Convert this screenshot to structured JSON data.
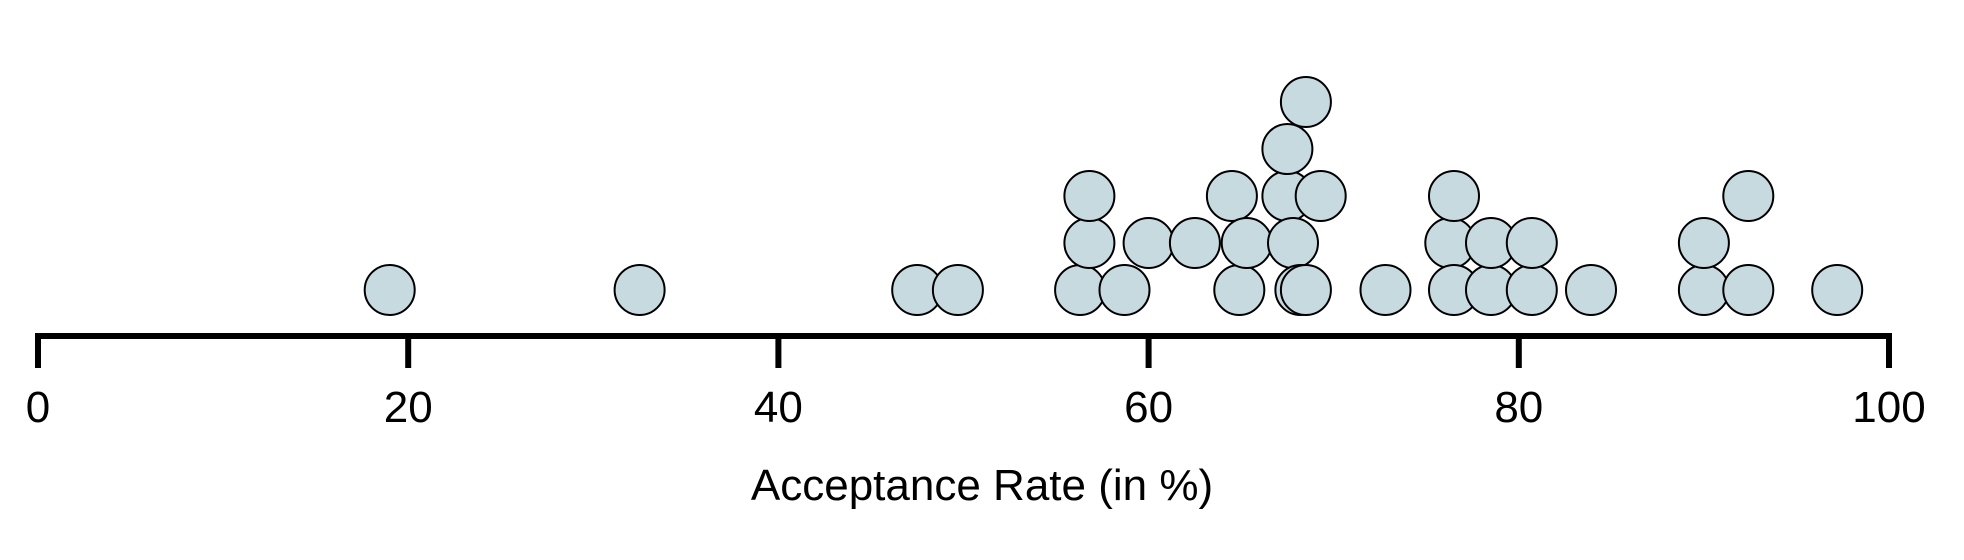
{
  "chart_data": {
    "type": "scatter",
    "subtype": "dot plot",
    "title": "",
    "xlabel": "Acceptance Rate (in %)",
    "ylabel": "",
    "xlim": [
      0,
      100
    ],
    "xticks": [
      0,
      20,
      40,
      60,
      80,
      100
    ],
    "xtick_labels": [
      "0",
      "20",
      "40",
      "60",
      "80",
      "100"
    ],
    "grid": false,
    "legend": "none",
    "point_color": "#c6dae0",
    "point_stroke": "#000000",
    "axis_color": "#000000",
    "series": [
      {
        "values": [
          19,
          32.5,
          47.5,
          49.7,
          56.3,
          56.8,
          56.8,
          58.7,
          60,
          62.5,
          64.5,
          64.9,
          65.3,
          67.5,
          67.5,
          67.8,
          68.2,
          68.5,
          68.5,
          69.3,
          72.8,
          76.3,
          76.5,
          76.5,
          78.5,
          78.5,
          80.7,
          80.7,
          83.9,
          90,
          90,
          92.4,
          92.4,
          97.2
        ],
        "stack_levels": [
          0,
          0,
          0,
          0,
          0,
          1,
          2,
          0,
          1,
          1,
          2,
          0,
          1,
          2,
          3,
          1,
          0,
          4,
          0,
          2,
          0,
          1,
          0,
          2,
          0,
          1,
          0,
          1,
          0,
          0,
          1,
          0,
          2,
          0
        ]
      }
    ]
  }
}
